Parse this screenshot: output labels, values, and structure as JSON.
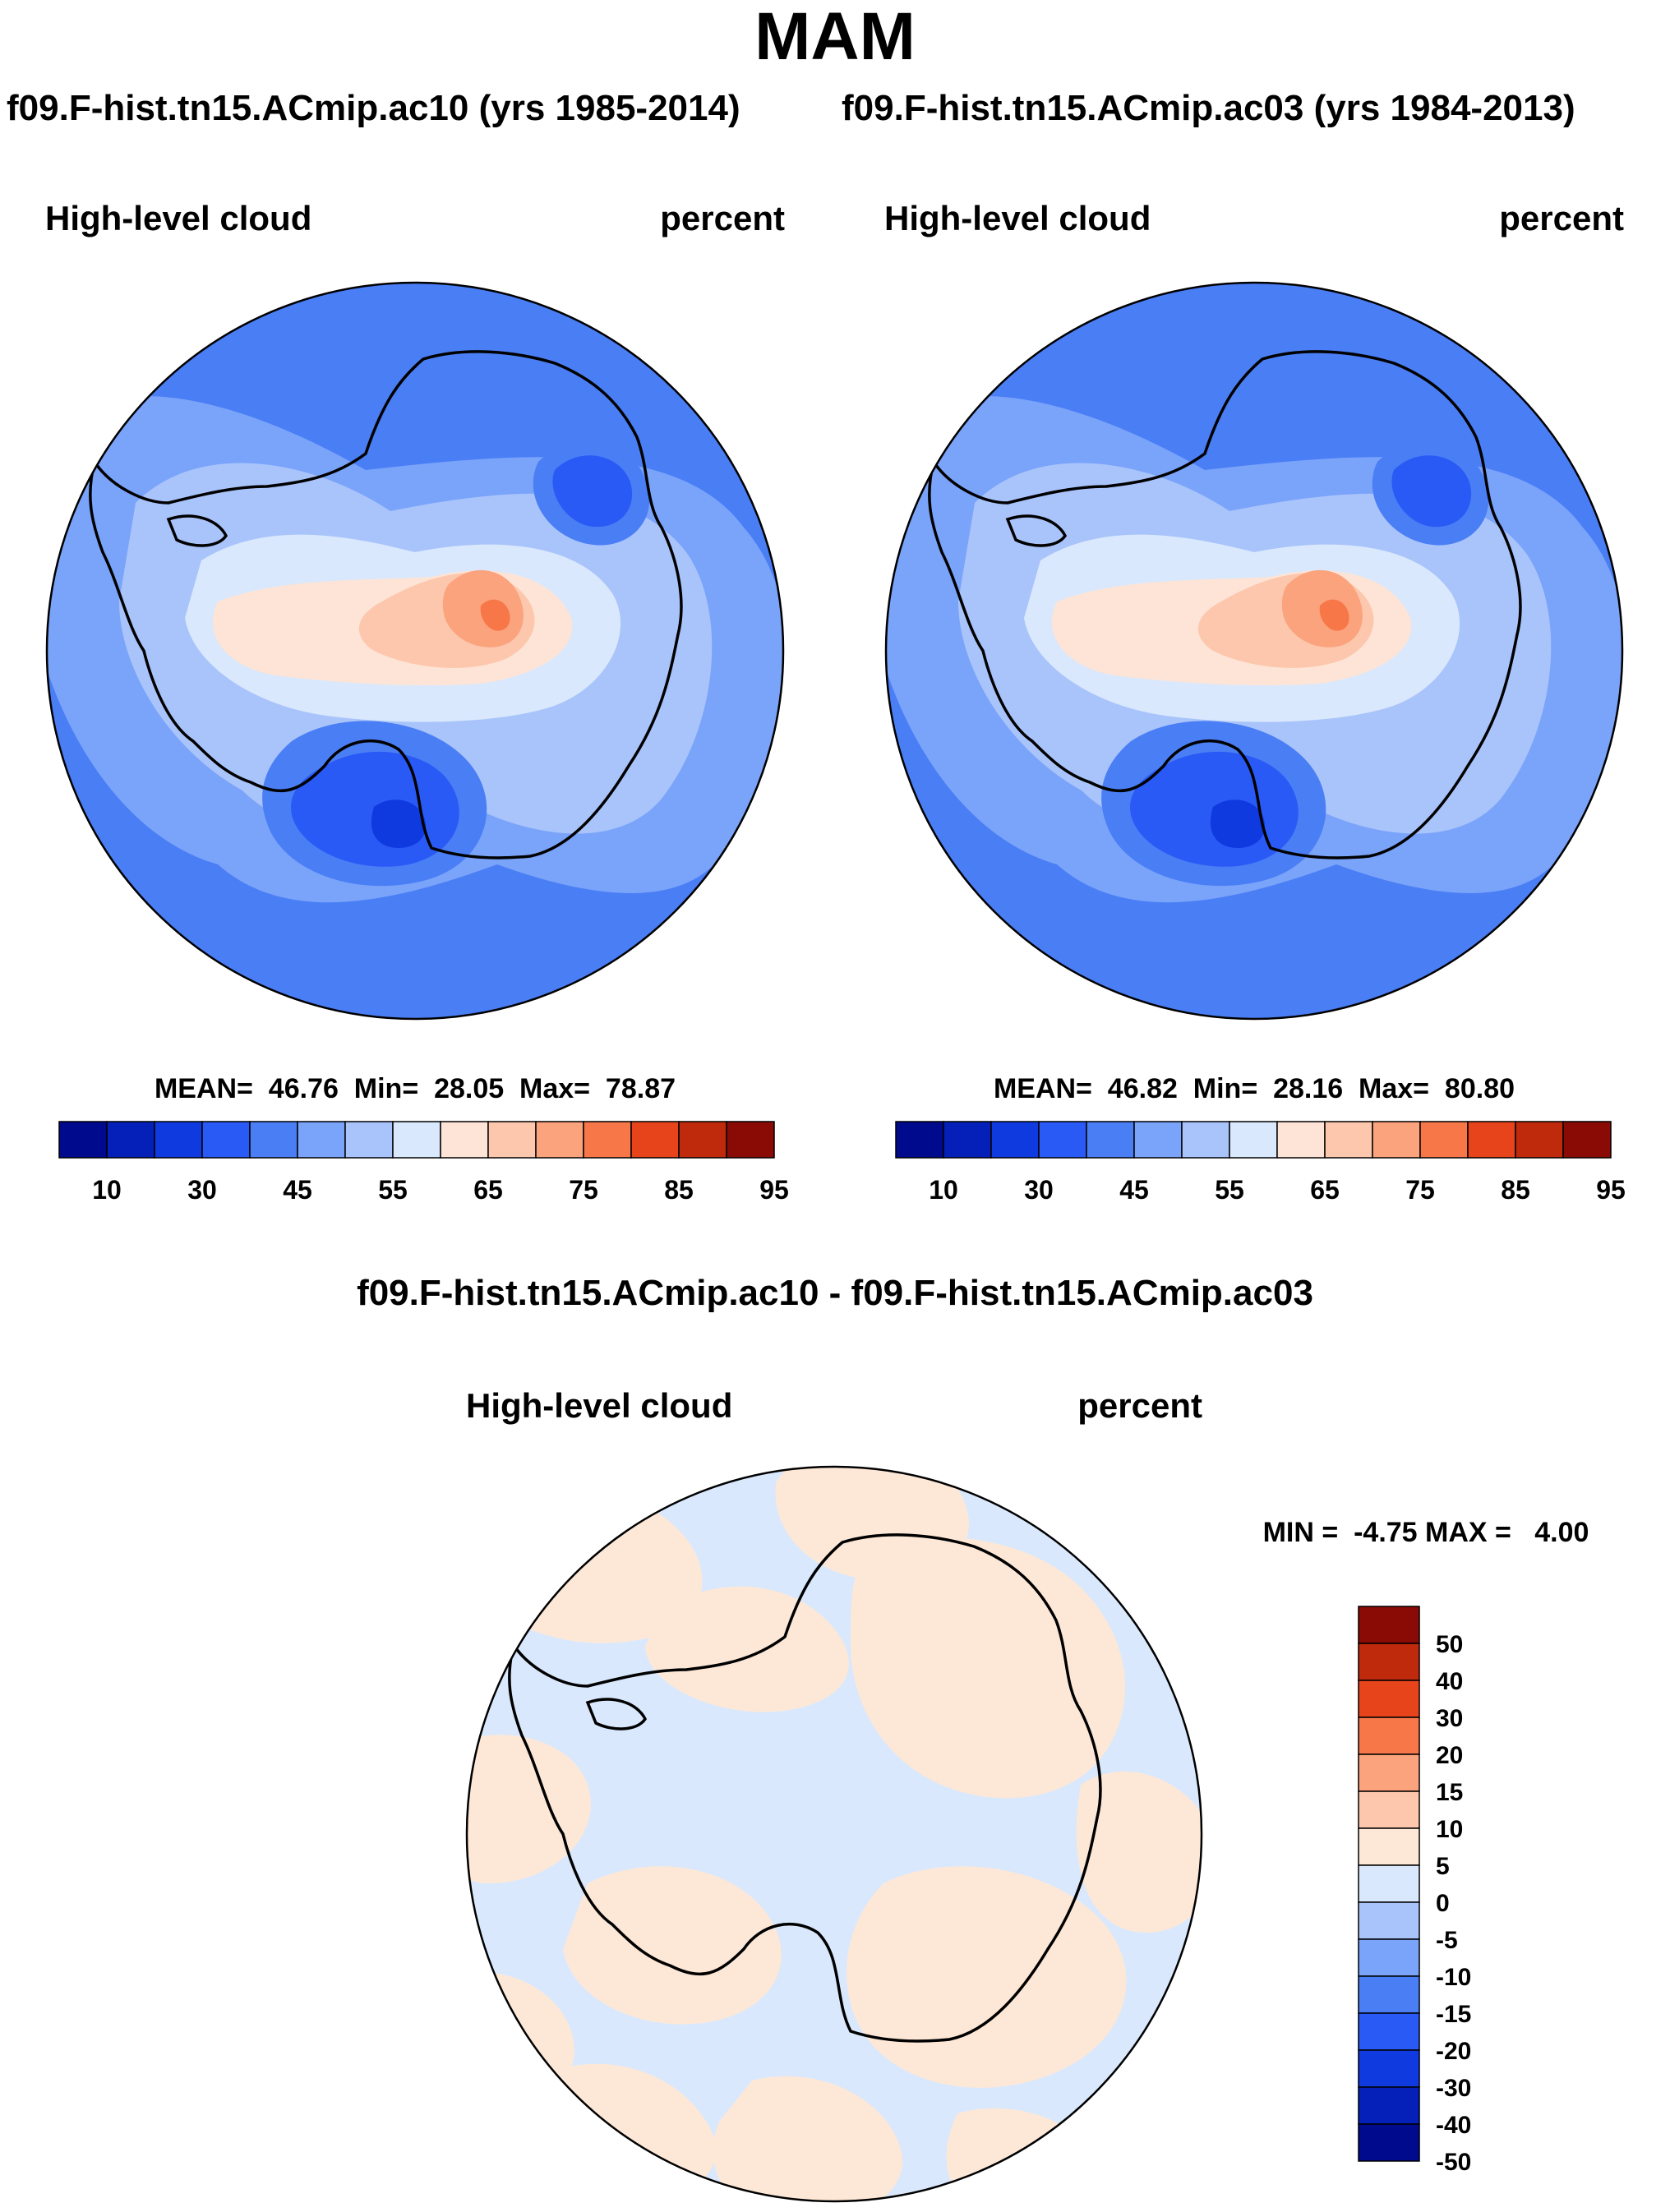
{
  "title": "MAM",
  "subtitles": {
    "left": "f09.F-hist.tn15.ACmip.ac10 (yrs 1985-2014)",
    "right": "f09.F-hist.tn15.ACmip.ac03 (yrs 1984-2013)"
  },
  "diff_title": "f09.F-hist.tn15.ACmip.ac10 - f09.F-hist.tn15.ACmip.ac03",
  "colors": {
    "abs_palette": [
      "#000a8c",
      "#0520b8",
      "#0f3ae0",
      "#2a5af5",
      "#4a7ef5",
      "#7aa3fa",
      "#a9c4fb",
      "#d9e8fc",
      "#fde4d6",
      "#fcc7ad",
      "#fba37d",
      "#f77748",
      "#e8441c",
      "#c02a0c",
      "#8a0a05"
    ],
    "diff_palette": [
      "#000a8c",
      "#0520b8",
      "#0f3ae0",
      "#2a5af5",
      "#4a7ef5",
      "#7aa3fa",
      "#a9c4fb",
      "#d9e8fc",
      "#fde8d8",
      "#fcc7ad",
      "#fba37d",
      "#f77748",
      "#e8441c",
      "#c02a0c",
      "#8a0a05"
    ],
    "coast": "#000000"
  },
  "chart_data": [
    {
      "type": "heatmap",
      "panel": "ac10",
      "left_label": "High-level cloud",
      "right_label": "percent",
      "stats": "MEAN=  46.76  Min=  28.05  Max=  78.87",
      "mean": 46.76,
      "min": 28.05,
      "max": 78.87,
      "colorbar_ticks": [
        "10",
        "30",
        "45",
        "55",
        "65",
        "75",
        "85",
        "95"
      ]
    },
    {
      "type": "heatmap",
      "panel": "ac03",
      "left_label": "High-level cloud",
      "right_label": "percent",
      "stats": "MEAN=  46.82  Min=  28.16  Max=  80.80",
      "mean": 46.82,
      "min": 28.16,
      "max": 80.8,
      "colorbar_ticks": [
        "10",
        "30",
        "45",
        "55",
        "65",
        "75",
        "85",
        "95"
      ]
    },
    {
      "type": "heatmap",
      "panel": "difference",
      "left_label": "High-level cloud",
      "right_label": "percent",
      "stats": "MIN =  -4.75 MAX =   4.00",
      "min": -4.75,
      "max": 4.0,
      "colorbar_ticks": [
        "50",
        "40",
        "30",
        "20",
        "15",
        "10",
        "5",
        "0",
        "-5",
        "-10",
        "-15",
        "-20",
        "-30",
        "-40",
        "-50"
      ]
    }
  ]
}
